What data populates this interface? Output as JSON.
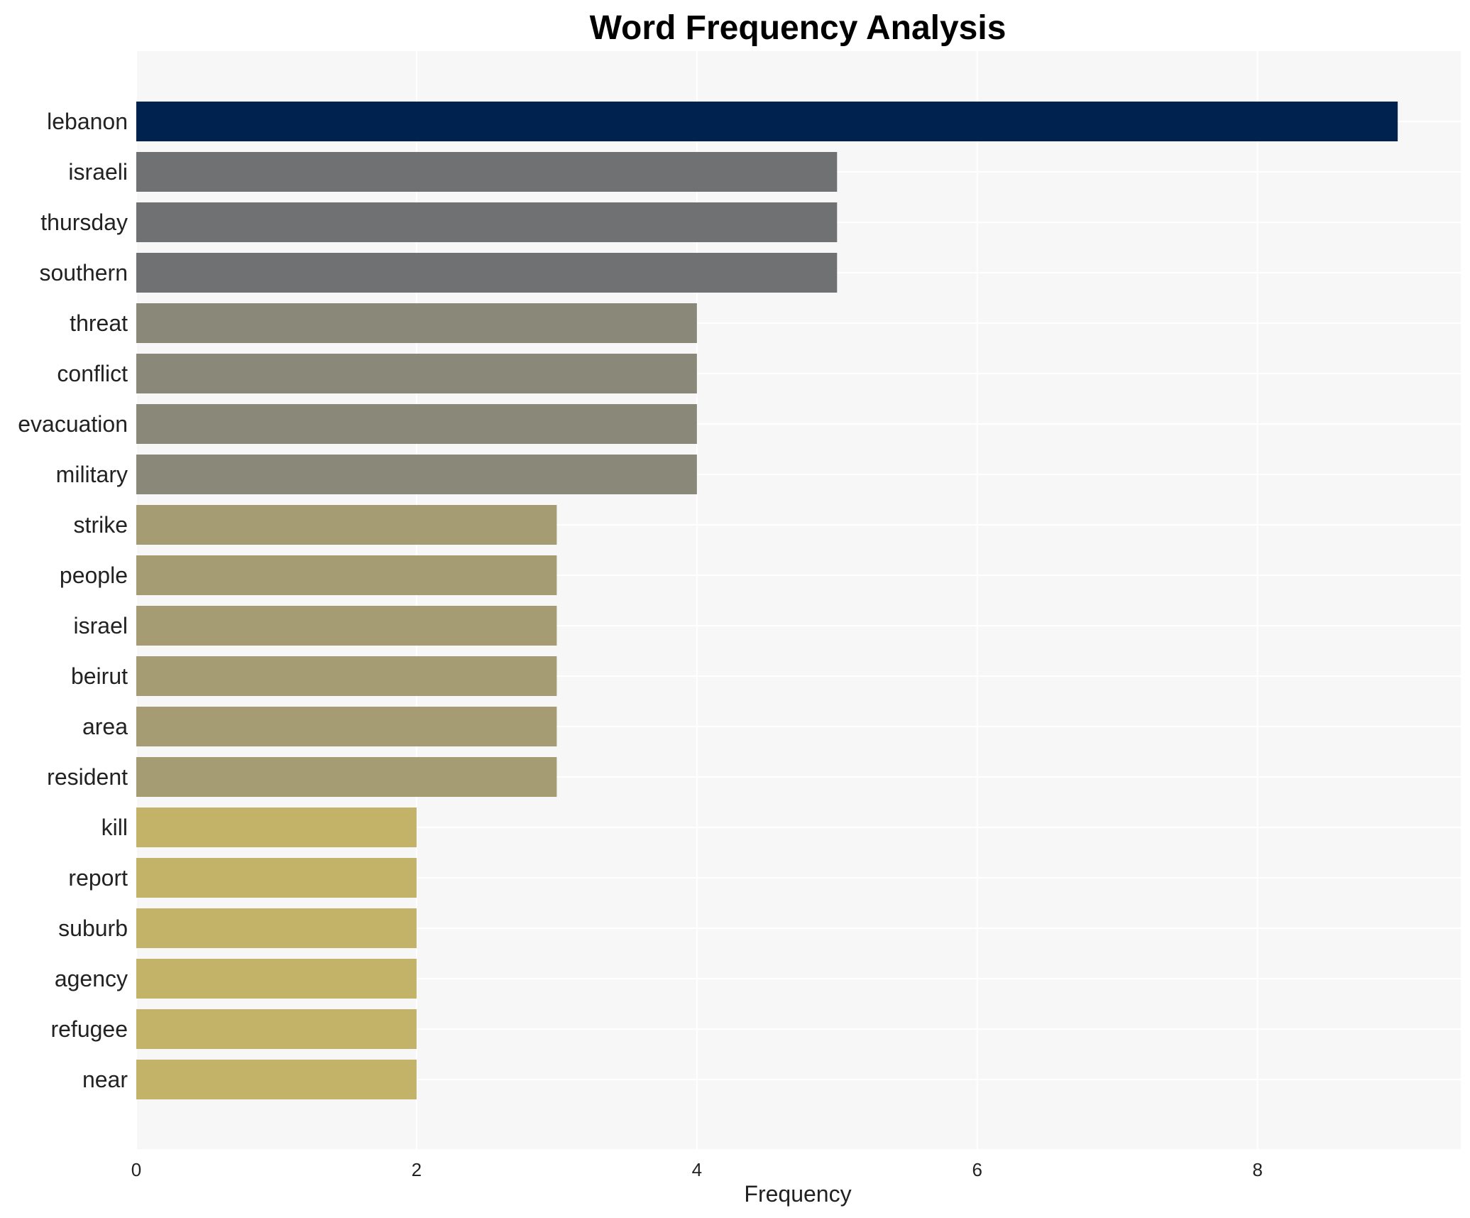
{
  "chart_data": {
    "type": "bar",
    "orientation": "horizontal",
    "title": "Word Frequency Analysis",
    "xlabel": "Frequency",
    "ylabel": "",
    "xlim": [
      0,
      9.45
    ],
    "xticks": [
      0,
      2,
      4,
      6,
      8
    ],
    "grid": true,
    "legend": "none",
    "categories": [
      "lebanon",
      "israeli",
      "thursday",
      "southern",
      "threat",
      "conflict",
      "evacuation",
      "military",
      "strike",
      "people",
      "israel",
      "beirut",
      "area",
      "resident",
      "kill",
      "report",
      "suburb",
      "agency",
      "refugee",
      "near"
    ],
    "values": [
      9,
      5,
      5,
      5,
      4,
      4,
      4,
      4,
      3,
      3,
      3,
      3,
      3,
      3,
      2,
      2,
      2,
      2,
      2,
      2
    ],
    "colors": {
      "9": "#00224e",
      "5": "#707173",
      "4": "#8a8878",
      "3": "#a59c74",
      "2": "#c3b369"
    },
    "plot_background": "#f7f7f7",
    "grid_color": "#ffffff"
  }
}
